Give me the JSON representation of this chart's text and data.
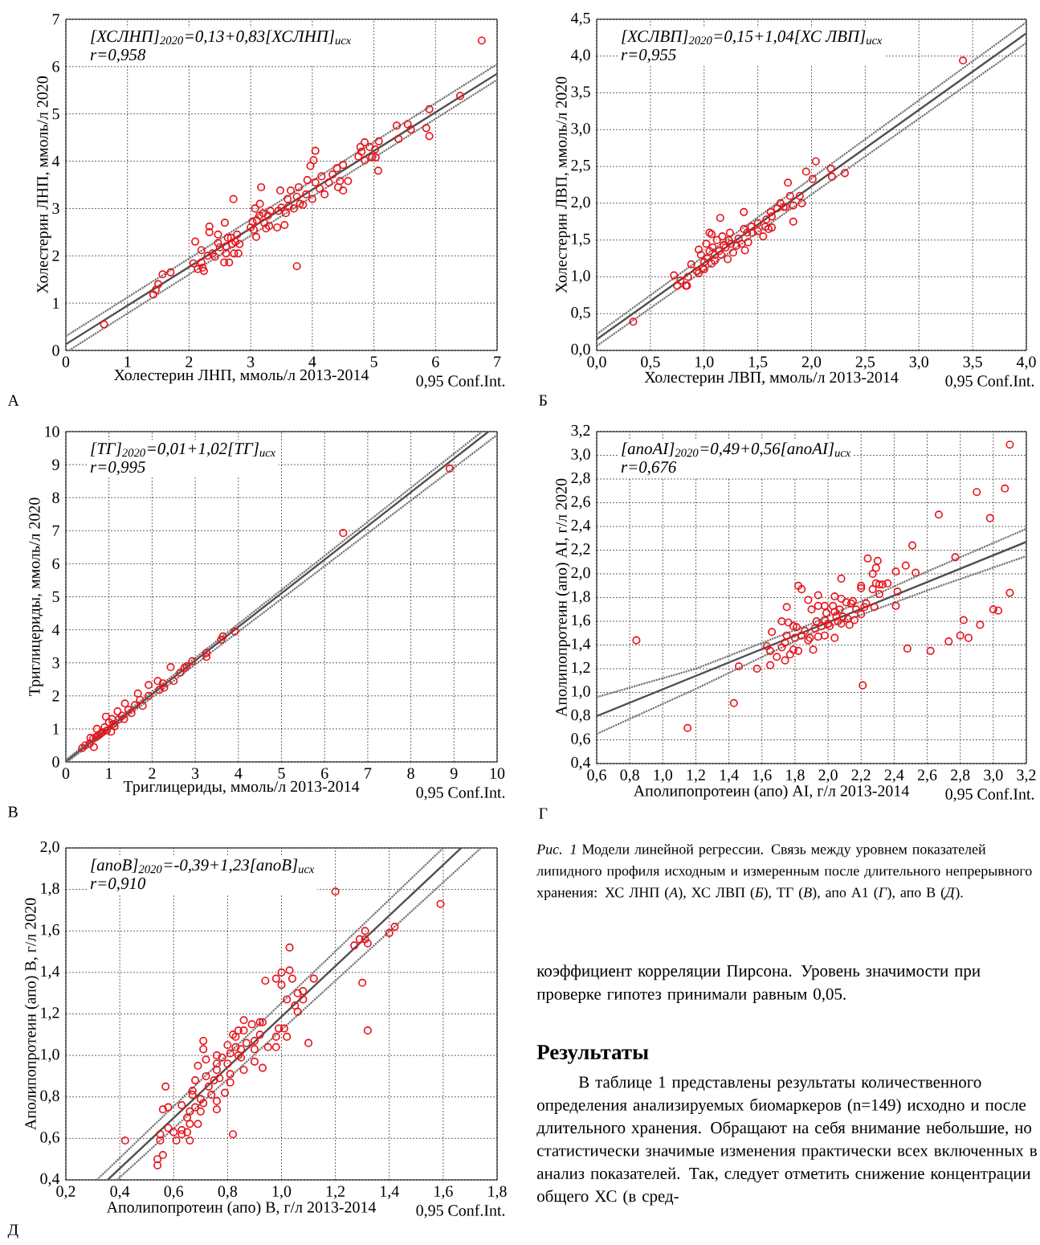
{
  "chart_data": [
    {
      "type": "scatter",
      "xlabel": "Холестерин ЛНП, ммоль/л 2013-2014",
      "ylabel": "Холестерин ЛНП, ммоль/л 2020",
      "grid": true,
      "marker": "circle",
      "xlim": [
        0,
        7
      ],
      "ylim": [
        0,
        7
      ],
      "xticks": [
        0,
        1,
        2,
        3,
        4,
        5,
        6,
        7
      ],
      "yticks": [
        0,
        1,
        2,
        3,
        4,
        5,
        6,
        7
      ],
      "annotations": [
        "[ХСЛНП]$_{2020}$=0,13+0,83[ХСЛНП]$_{исх}$",
        "r=0,958",
        "0,95 Conf.Int.",
        "А"
      ],
      "series": [
        {
          "type": "line",
          "marker": "none",
          "color": "#505050",
          "line_style": "solid",
          "x": [
            0,
            7
          ],
          "values": [
            0.13,
            5.85
          ]
        },
        {
          "type": "line",
          "marker": "none",
          "color": "#707070",
          "line_style": "dotted",
          "x": [
            0,
            7
          ],
          "values": [
            0.3,
            6.05
          ]
        },
        {
          "type": "line",
          "marker": "none",
          "color": "#707070",
          "line_style": "dotted",
          "x": [
            0.05,
            7
          ],
          "values": [
            0,
            5.72
          ]
        },
        {
          "type": "scatter",
          "color": "#e8141c",
          "x": [
            0.62,
            1.42,
            1.46,
            1.5,
            1.57,
            1.7,
            2.07,
            2.1,
            2.14,
            2.2,
            2.2,
            2.22,
            2.24,
            2.3,
            2.33,
            2.33,
            2.38,
            2.42,
            2.47,
            2.47,
            2.5,
            2.57,
            2.58,
            2.6,
            2.6,
            2.63,
            2.65,
            2.68,
            2.7,
            2.72,
            2.73,
            2.75,
            2.78,
            2.8,
            2.82,
            3.0,
            3.03,
            3.05,
            3.07,
            3.09,
            3.1,
            3.14,
            3.15,
            3.17,
            3.2,
            3.22,
            3.25,
            3.28,
            3.3,
            3.32,
            3.43,
            3.45,
            3.48,
            3.5,
            3.55,
            3.57,
            3.6,
            3.62,
            3.65,
            3.7,
            3.75,
            3.75,
            3.78,
            3.8,
            3.85,
            3.9,
            3.92,
            3.97,
            4.0,
            4.02,
            4.05,
            4.05,
            4.12,
            4.15,
            4.2,
            4.27,
            4.33,
            4.4,
            4.42,
            4.45,
            4.5,
            4.5,
            4.58,
            4.75,
            4.78,
            4.8,
            4.85,
            4.85,
            4.93,
            4.97,
            5.02,
            5.03,
            5.07,
            5.08,
            5.37,
            5.4,
            5.55,
            5.6,
            5.85,
            5.9,
            5.9,
            6.4,
            6.75
          ],
          "values": [
            0.55,
            1.18,
            1.28,
            1.4,
            1.61,
            1.65,
            1.84,
            2.3,
            1.72,
            2.12,
            1.86,
            1.75,
            1.68,
            2.0,
            2.62,
            2.5,
            2.05,
            1.98,
            2.45,
            2.27,
            2.18,
            1.86,
            2.7,
            2.2,
            2.05,
            2.38,
            1.86,
            2.38,
            2.25,
            3.2,
            2.05,
            2.3,
            2.45,
            2.05,
            2.25,
            2.6,
            2.72,
            2.55,
            3.0,
            2.4,
            2.75,
            2.85,
            3.1,
            3.45,
            2.9,
            2.7,
            2.58,
            2.85,
            2.63,
            2.95,
            2.6,
            2.95,
            3.38,
            3.02,
            2.65,
            2.9,
            3.2,
            3.05,
            3.38,
            3.0,
            1.78,
            3.25,
            3.45,
            3.1,
            3.08,
            3.3,
            3.6,
            3.9,
            3.2,
            4.02,
            4.22,
            3.55,
            3.42,
            3.68,
            3.3,
            3.55,
            3.72,
            3.85,
            3.45,
            3.58,
            3.92,
            3.38,
            3.58,
            4.1,
            4.3,
            4.2,
            4.4,
            4.02,
            4.3,
            4.08,
            4.25,
            4.08,
            3.8,
            4.42,
            4.75,
            4.47,
            4.78,
            4.67,
            4.7,
            4.53,
            5.1,
            5.38,
            6.55
          ]
        }
      ]
    },
    {
      "type": "scatter",
      "xlabel": "Холестерин ЛВП, ммоль/л 2013-2014",
      "ylabel": "Холестерин ЛВП, ммоль/л 2020",
      "grid": true,
      "marker": "circle",
      "xlim": [
        0,
        4
      ],
      "ylim": [
        0,
        4.5
      ],
      "xticks": [
        {
          "value": 0,
          "label": "0,0"
        },
        {
          "value": 0.5,
          "label": "0,5"
        },
        {
          "value": 1,
          "label": "1,0"
        },
        {
          "value": 1.5,
          "label": "1,5"
        },
        {
          "value": 2,
          "label": "2,0"
        },
        {
          "value": 2.5,
          "label": "2,5"
        },
        {
          "value": 3,
          "label": "3,0"
        },
        {
          "value": 3.5,
          "label": "3,5"
        },
        {
          "value": 4,
          "label": "4,0"
        }
      ],
      "yticks": [
        {
          "value": 0,
          "label": "0,0"
        },
        {
          "value": 0.5,
          "label": "0,5"
        },
        {
          "value": 1,
          "label": "1,0"
        },
        {
          "value": 1.5,
          "label": "1,5"
        },
        {
          "value": 2,
          "label": "2,0"
        },
        {
          "value": 2.5,
          "label": "2,5"
        },
        {
          "value": 3,
          "label": "3,0"
        },
        {
          "value": 3.5,
          "label": "3,5"
        },
        {
          "value": 4,
          "label": "4,0"
        },
        {
          "value": 4.5,
          "label": "4,5"
        }
      ],
      "annotations": [
        "[ХСЛВП]$_{2020}$=0,15+1,04[ХС ЛВП]$_{исх}$",
        "r=0,955",
        "0,95 Conf.Int.",
        "Б"
      ],
      "series": [
        {
          "type": "line",
          "marker": "none",
          "color": "#505050",
          "line_style": "solid",
          "x": [
            0,
            4
          ],
          "values": [
            0.15,
            4.31
          ]
        },
        {
          "type": "line",
          "marker": "none",
          "color": "#707070",
          "line_style": "dotted",
          "x": [
            0,
            4
          ],
          "values": [
            0.22,
            4.46
          ]
        },
        {
          "type": "line",
          "marker": "none",
          "color": "#707070",
          "line_style": "dotted",
          "x": [
            0,
            4
          ],
          "values": [
            0.06,
            4.18
          ]
        },
        {
          "type": "scatter",
          "color": "#e8141c",
          "x": [
            0.34,
            0.72,
            0.75,
            0.78,
            0.83,
            0.85,
            0.84,
            0.88,
            0.93,
            0.95,
            0.95,
            0.97,
            0.99,
            1.0,
            1.0,
            1.02,
            1.03,
            1.05,
            1.05,
            1.07,
            1.07,
            1.08,
            1.1,
            1.1,
            1.12,
            1.14,
            1.15,
            1.16,
            1.17,
            1.18,
            1.2,
            1.22,
            1.23,
            1.24,
            1.25,
            1.27,
            1.3,
            1.32,
            1.35,
            1.37,
            1.37,
            1.38,
            1.4,
            1.41,
            1.44,
            1.45,
            1.5,
            1.5,
            1.55,
            1.57,
            1.58,
            1.6,
            1.62,
            1.63,
            1.63,
            1.68,
            1.71,
            1.74,
            1.76,
            1.78,
            1.8,
            1.83,
            1.83,
            1.89,
            1.91,
            1.95,
            2.01,
            2.04,
            2.18,
            2.19,
            2.31,
            3.41
          ],
          "values": [
            0.39,
            1.02,
            0.88,
            0.95,
            0.88,
            1.0,
            0.88,
            1.17,
            1.08,
            1.37,
            1.05,
            1.3,
            1.12,
            1.2,
            1.1,
            1.45,
            1.25,
            1.6,
            1.35,
            1.58,
            1.18,
            1.4,
            1.3,
            1.22,
            1.5,
            1.35,
            1.8,
            1.3,
            1.55,
            1.43,
            1.4,
            1.24,
            1.5,
            1.6,
            1.45,
            1.33,
            1.42,
            1.52,
            1.45,
            1.88,
            1.65,
            1.36,
            1.6,
            1.47,
            1.68,
            1.6,
            1.73,
            1.62,
            1.55,
            1.68,
            1.78,
            1.65,
            1.88,
            1.82,
            1.67,
            1.93,
            2.0,
            1.95,
            1.95,
            2.28,
            2.1,
            1.75,
            1.97,
            2.1,
            2.0,
            2.43,
            2.33,
            2.57,
            2.47,
            2.36,
            2.41,
            3.94
          ]
        }
      ]
    },
    {
      "type": "scatter",
      "xlabel": "Триглицериды, ммоль/л 2013-2014",
      "ylabel": "Триглицериды, ммоль/л 2020",
      "grid": true,
      "marker": "circle",
      "xlim": [
        0,
        10
      ],
      "ylim": [
        0,
        10
      ],
      "xticks": [
        0,
        1,
        2,
        3,
        4,
        5,
        6,
        7,
        8,
        9,
        10
      ],
      "yticks": [
        0,
        1,
        2,
        3,
        4,
        5,
        6,
        7,
        8,
        9,
        10
      ],
      "annotations": [
        "[ТГ]$_{2020}$=0,01+1,02[ТГ]$_{исх}$",
        "r=0,995",
        "0,95 Conf.Int.",
        "В"
      ],
      "series": [
        {
          "type": "line",
          "marker": "none",
          "color": "#505050",
          "line_style": "solid",
          "x": [
            0,
            9.8
          ],
          "values": [
            0.01,
            10
          ]
        },
        {
          "type": "line",
          "marker": "none",
          "color": "#707070",
          "line_style": "dotted",
          "x": [
            0,
            9.65
          ],
          "values": [
            0.06,
            10
          ]
        },
        {
          "type": "line",
          "marker": "none",
          "color": "#707070",
          "line_style": "dotted",
          "x": [
            0.03,
            10
          ],
          "values": [
            0,
            9.9
          ]
        },
        {
          "type": "scatter",
          "color": "#e8141c",
          "x": [
            0.38,
            0.45,
            0.55,
            0.57,
            0.63,
            0.65,
            0.7,
            0.72,
            0.75,
            0.8,
            0.85,
            0.9,
            0.93,
            0.95,
            1.0,
            1.05,
            1.07,
            1.1,
            1.13,
            1.2,
            1.22,
            1.3,
            1.35,
            1.37,
            1.45,
            1.52,
            1.6,
            1.67,
            1.72,
            1.78,
            1.92,
            1.92,
            2.13,
            2.17,
            2.25,
            2.28,
            2.43,
            2.5,
            2.65,
            2.75,
            2.8,
            2.93,
            3.26,
            3.26,
            3.6,
            3.64,
            3.92,
            6.43,
            8.9
          ],
          "values": [
            0.42,
            0.5,
            0.55,
            0.73,
            0.7,
            0.45,
            0.75,
            1.0,
            0.8,
            0.85,
            0.9,
            1.05,
            1.37,
            0.95,
            1.2,
            0.92,
            1.3,
            1.15,
            1.08,
            1.53,
            1.28,
            1.4,
            1.3,
            1.77,
            1.58,
            1.48,
            1.72,
            2.07,
            1.88,
            1.7,
            2.33,
            2.0,
            2.45,
            2.18,
            2.38,
            2.25,
            2.87,
            2.45,
            2.7,
            2.85,
            2.9,
            3.05,
            3.3,
            3.18,
            3.7,
            3.8,
            3.95,
            6.93,
            8.88
          ]
        }
      ]
    },
    {
      "type": "scatter",
      "xlabel": "Аполипопротеин (апо) AI, г/л 2013-2014",
      "ylabel": "Аполипопротеин (апо) AI, г/л 2020",
      "grid": true,
      "marker": "circle",
      "xlim": [
        0.6,
        3.2
      ],
      "ylim": [
        0.4,
        3.2
      ],
      "xticks": [
        {
          "value": 0.6,
          "label": "0,6"
        },
        {
          "value": 0.8,
          "label": "0,8"
        },
        {
          "value": 1.0,
          "label": "1,0"
        },
        {
          "value": 1.2,
          "label": "1,2"
        },
        {
          "value": 1.4,
          "label": "1,4"
        },
        {
          "value": 1.6,
          "label": "1,6"
        },
        {
          "value": 1.8,
          "label": "1,8"
        },
        {
          "value": 2.0,
          "label": "2,0"
        },
        {
          "value": 2.2,
          "label": "2,2"
        },
        {
          "value": 2.4,
          "label": "2,4"
        },
        {
          "value": 2.6,
          "label": "2,6"
        },
        {
          "value": 2.8,
          "label": "2,8"
        },
        {
          "value": 3.0,
          "label": "3,0"
        },
        {
          "value": 3.2,
          "label": "3,2"
        }
      ],
      "yticks": [
        {
          "value": 0.4,
          "label": "0,4"
        },
        {
          "value": 0.6,
          "label": "0,6"
        },
        {
          "value": 0.8,
          "label": "0,8"
        },
        {
          "value": 1.0,
          "label": "1,0"
        },
        {
          "value": 1.2,
          "label": "1,2"
        },
        {
          "value": 1.4,
          "label": "1,4"
        },
        {
          "value": 1.6,
          "label": "1,6"
        },
        {
          "value": 1.8,
          "label": "1,8"
        },
        {
          "value": 2.0,
          "label": "2,0"
        },
        {
          "value": 2.2,
          "label": "2,2"
        },
        {
          "value": 2.4,
          "label": "2,4"
        },
        {
          "value": 2.6,
          "label": "2,6"
        },
        {
          "value": 2.8,
          "label": "2,8"
        },
        {
          "value": 3.0,
          "label": "3,0"
        },
        {
          "value": 3.2,
          "label": "3,2"
        }
      ],
      "annotations": [
        "[апоAI]$_{2020}$=0,49+0,56[апоAI]$_{исх}$",
        "r=0,676",
        "0,95 Conf.Int.",
        "Г"
      ],
      "series": [
        {
          "type": "line",
          "marker": "none",
          "color": "#505050",
          "line_style": "solid",
          "x": [
            0.6,
            3.2
          ],
          "values": [
            0.8,
            2.27
          ]
        },
        {
          "type": "line",
          "marker": "none",
          "color": "#707070",
          "line_style": "dotted",
          "x": [
            0.6,
            1.2,
            1.9,
            2.6,
            3.2
          ],
          "values": [
            0.96,
            1.2,
            1.58,
            2.02,
            2.38
          ]
        },
        {
          "type": "line",
          "marker": "none",
          "color": "#707070",
          "line_style": "dotted",
          "x": [
            0.6,
            1.2,
            1.9,
            2.6,
            3.2
          ],
          "values": [
            0.65,
            1.03,
            1.5,
            1.86,
            2.15
          ]
        },
        {
          "type": "scatter",
          "color": "#e8141c",
          "x": [
            0.84,
            1.15,
            1.43,
            1.46,
            1.57,
            1.63,
            1.65,
            1.65,
            1.66,
            1.69,
            1.72,
            1.72,
            1.74,
            1.74,
            1.75,
            1.75,
            1.76,
            1.77,
            1.79,
            1.79,
            1.8,
            1.81,
            1.82,
            1.82,
            1.84,
            1.84,
            1.86,
            1.88,
            1.88,
            1.89,
            1.9,
            1.91,
            1.92,
            1.93,
            1.94,
            1.94,
            1.94,
            1.96,
            1.98,
            1.98,
            1.98,
            1.99,
            2.0,
            2.01,
            2.03,
            2.04,
            2.04,
            2.04,
            2.05,
            2.06,
            2.07,
            2.08,
            2.08,
            2.08,
            2.09,
            2.11,
            2.12,
            2.13,
            2.14,
            2.15,
            2.16,
            2.17,
            2.2,
            2.2,
            2.2,
            2.21,
            2.22,
            2.23,
            2.24,
            2.27,
            2.27,
            2.28,
            2.29,
            2.29,
            2.3,
            2.31,
            2.31,
            2.33,
            2.36,
            2.41,
            2.41,
            2.42,
            2.47,
            2.48,
            2.51,
            2.53,
            2.62,
            2.67,
            2.73,
            2.77,
            2.8,
            2.82,
            2.85,
            2.9,
            2.92,
            2.98,
            3.0,
            3.03,
            3.07,
            3.1,
            3.1
          ],
          "values": [
            1.44,
            0.7,
            0.91,
            1.22,
            1.2,
            1.39,
            1.23,
            1.35,
            1.51,
            1.3,
            1.38,
            1.6,
            1.27,
            1.42,
            1.72,
            1.48,
            1.59,
            1.32,
            1.36,
            1.56,
            1.46,
            1.55,
            1.9,
            1.35,
            1.87,
            1.48,
            1.52,
            1.78,
            1.44,
            1.46,
            1.7,
            1.36,
            1.54,
            1.6,
            1.82,
            1.73,
            1.47,
            1.56,
            1.73,
            1.61,
            1.48,
            1.67,
            1.58,
            1.56,
            1.73,
            1.81,
            1.68,
            1.46,
            1.64,
            1.6,
            1.7,
            1.79,
            1.96,
            1.58,
            1.64,
            1.76,
            1.62,
            1.57,
            1.75,
            1.77,
            1.61,
            1.7,
            1.9,
            1.88,
            1.66,
            1.06,
            1.72,
            1.75,
            2.13,
            1.87,
            2.0,
            1.72,
            2.05,
            1.92,
            2.11,
            1.91,
            1.83,
            1.91,
            1.92,
            1.73,
            2.02,
            1.85,
            2.07,
            1.37,
            2.24,
            2.01,
            1.35,
            2.5,
            1.43,
            2.14,
            1.48,
            1.61,
            1.46,
            2.69,
            1.57,
            2.47,
            1.7,
            1.69,
            2.72,
            1.84,
            3.09
          ]
        }
      ]
    },
    {
      "type": "scatter",
      "xlabel": "Аполипопротеин (апо) B, г/л 2013-2014",
      "ylabel": "Аполипопротеин (апо) B, г/л 2020",
      "grid": true,
      "marker": "circle",
      "xlim": [
        0.2,
        1.8
      ],
      "ylim": [
        0.4,
        2.0
      ],
      "xticks": [
        {
          "value": 0.2,
          "label": "0,2"
        },
        {
          "value": 0.4,
          "label": "0,4"
        },
        {
          "value": 0.6,
          "label": "0,6"
        },
        {
          "value": 0.8,
          "label": "0,8"
        },
        {
          "value": 1.0,
          "label": "1,0"
        },
        {
          "value": 1.2,
          "label": "1,2"
        },
        {
          "value": 1.4,
          "label": "1,4"
        },
        {
          "value": 1.6,
          "label": "1,6"
        },
        {
          "value": 1.8,
          "label": "1,8"
        }
      ],
      "yticks": [
        {
          "value": 0.4,
          "label": "0,4"
        },
        {
          "value": 0.6,
          "label": "0,6"
        },
        {
          "value": 0.8,
          "label": "0,8"
        },
        {
          "value": 1.0,
          "label": "1,0"
        },
        {
          "value": 1.2,
          "label": "1,2"
        },
        {
          "value": 1.4,
          "label": "1,4"
        },
        {
          "value": 1.6,
          "label": "1,6"
        },
        {
          "value": 1.8,
          "label": "1,8"
        },
        {
          "value": 2.0,
          "label": "2,0"
        }
      ],
      "annotations": [
        "[апоB]$_{2020}$=-0,39+1,23[апоB]$_{исх}$",
        "r=0,910",
        "0,95 Conf.Int.",
        "Д"
      ],
      "series": [
        {
          "type": "line",
          "marker": "none",
          "color": "#505050",
          "line_style": "solid",
          "x": [
            0.355,
            1.667
          ],
          "values": [
            0.4,
            2.0
          ]
        },
        {
          "type": "line",
          "marker": "none",
          "color": "#707070",
          "line_style": "dotted",
          "x": [
            0.315,
            1.6
          ],
          "values": [
            0.4,
            2.0
          ]
        },
        {
          "type": "line",
          "marker": "none",
          "color": "#707070",
          "line_style": "dotted",
          "x": [
            0.39,
            1.74
          ],
          "values": [
            0.4,
            2.0
          ]
        },
        {
          "type": "scatter",
          "color": "#e8141c",
          "x": [
            0.42,
            0.54,
            0.54,
            0.55,
            0.55,
            0.56,
            0.56,
            0.57,
            0.58,
            0.58,
            0.6,
            0.61,
            0.63,
            0.63,
            0.63,
            0.65,
            0.65,
            0.66,
            0.66,
            0.66,
            0.67,
            0.67,
            0.68,
            0.68,
            0.69,
            0.69,
            0.7,
            0.7,
            0.71,
            0.71,
            0.71,
            0.72,
            0.72,
            0.73,
            0.74,
            0.75,
            0.76,
            0.76,
            0.76,
            0.76,
            0.76,
            0.77,
            0.78,
            0.79,
            0.8,
            0.8,
            0.81,
            0.81,
            0.81,
            0.82,
            0.82,
            0.83,
            0.83,
            0.84,
            0.84,
            0.85,
            0.85,
            0.86,
            0.86,
            0.86,
            0.87,
            0.89,
            0.9,
            0.9,
            0.9,
            0.92,
            0.92,
            0.93,
            0.93,
            0.94,
            0.95,
            0.98,
            0.98,
            0.98,
            0.99,
            1.0,
            1.0,
            1.01,
            1.02,
            1.02,
            1.03,
            1.03,
            1.04,
            1.05,
            1.06,
            1.06,
            1.08,
            1.08,
            1.1,
            1.12,
            1.2,
            1.27,
            1.29,
            1.3,
            1.31,
            1.31,
            1.32,
            1.32,
            1.4,
            1.42,
            1.59
          ],
          "values": [
            0.59,
            0.5,
            0.47,
            0.62,
            0.59,
            0.52,
            0.74,
            0.85,
            0.65,
            0.75,
            0.63,
            0.59,
            0.76,
            0.64,
            0.62,
            0.63,
            0.7,
            0.59,
            0.67,
            0.73,
            0.81,
            0.83,
            0.75,
            0.88,
            0.95,
            0.67,
            0.73,
            0.79,
            0.77,
            1.07,
            1.03,
            0.98,
            0.9,
            0.85,
            0.81,
            0.88,
            1.0,
            0.96,
            0.93,
            0.78,
            0.74,
            0.89,
            0.99,
            0.82,
            0.96,
            1.05,
            0.91,
            0.87,
            1.01,
            1.1,
            0.62,
            1.04,
            1.09,
            1.12,
            1.0,
            1.03,
            0.99,
            1.17,
            1.12,
            0.93,
            1.06,
            1.15,
            1.07,
            1.03,
            0.97,
            1.16,
            1.1,
            1.16,
            0.94,
            1.36,
            1.04,
            1.37,
            1.09,
            1.04,
            1.13,
            1.4,
            1.34,
            1.13,
            1.27,
            1.09,
            1.52,
            1.41,
            1.37,
            1.24,
            1.3,
            1.21,
            1.31,
            1.27,
            1.06,
            1.37,
            1.79,
            1.53,
            1.56,
            1.35,
            1.6,
            1.56,
            1.54,
            1.12,
            1.59,
            1.62,
            1.73
          ]
        }
      ]
    },
    {
      "type": "other",
      "title": "Результаты",
      "annotations": [
        "*Рис. 1* Модели линейной регрессии. Связь между уровнем показателей липидного профиля исходным и измеренным после длительного непрерывного хранения: ХС ЛНП (*А*), ХС ЛВП (*Б*), ТГ (*В*), апо А1 (*Г*), апо В (*Д*).",
        "коэффициент корреляции Пирсона. Уровень значимости при проверке гипотез принимали равным 0,05.",
        "В таблице 1 представлены результаты количественного определения анализируемых биомаркеров (n=149) исходно и после длительного хранения. Обращают на себя внимание небольшие, но статистически значимые изменения практически всех включенных в анализ показателей. Так, следует отметить снижение концентрации общего ХС (в сред-"
      ]
    }
  ]
}
